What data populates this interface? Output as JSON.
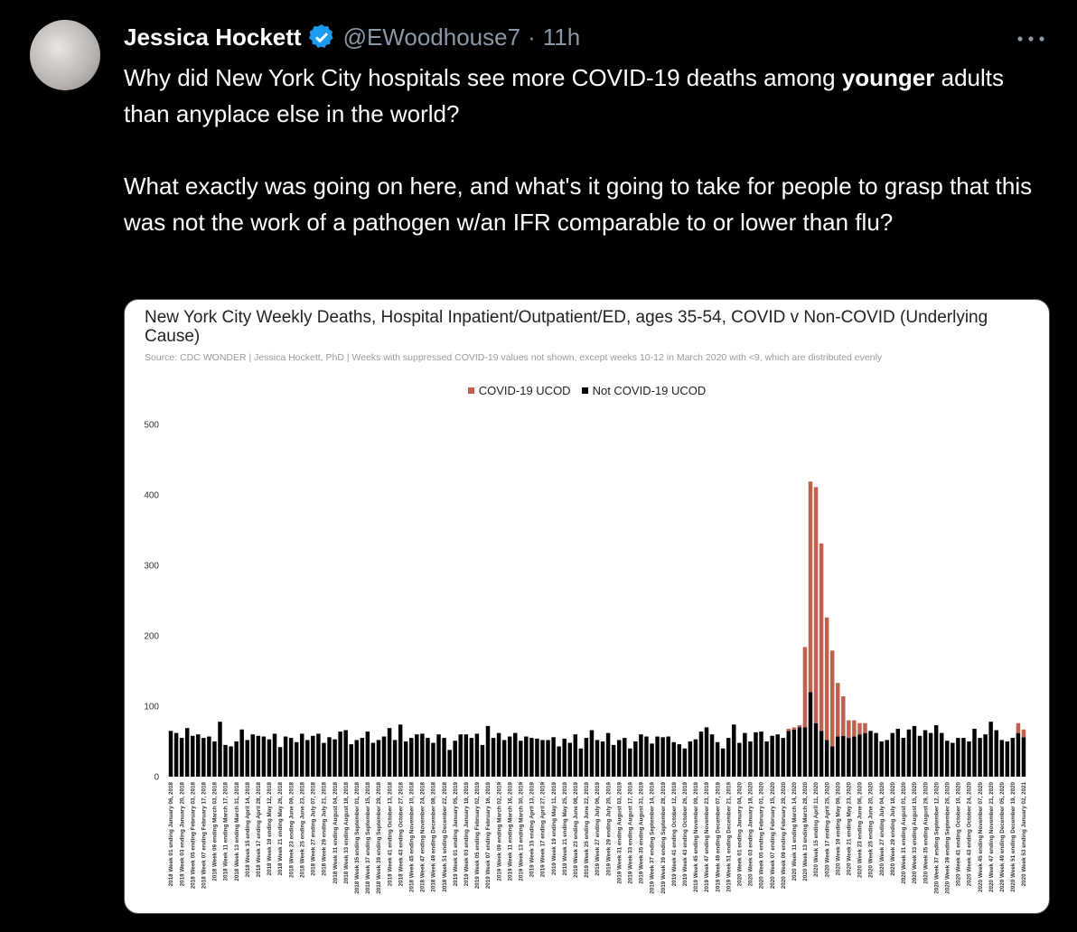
{
  "tweet": {
    "author": {
      "name": "Jessica Hockett",
      "handle": "@EWoodhouse7"
    },
    "separator": "·",
    "time": "11h",
    "paragraphs": [
      [
        {
          "text": "Why did New York City hospitals see more COVID-19 deaths among "
        },
        {
          "text": "younger",
          "bold": true
        },
        {
          "text": " adults than anyplace else in the world?"
        }
      ],
      [
        {
          "text": "What exactly was going on here, and what's it going to take for people to grasp that this was not the work of a pathogen w/an IFR comparable to or lower than flu?"
        }
      ]
    ]
  },
  "chart_data": {
    "type": "bar",
    "stacked": true,
    "title": "New York City Weekly Deaths, Hospital Inpatient/Outpatient/ED, ages 35-54, COVID v Non-COVID (Underlying Cause)",
    "subtitle": "Source: CDC WONDER | Jessica Hockett, PhD | Weeks with suppressed COVID-19 values not shown, except weeks 10-12 in March 2020 with <9, which are distributed evenly",
    "ylim": [
      0,
      500
    ],
    "yticks": [
      0,
      100,
      200,
      300,
      400,
      500
    ],
    "grid": false,
    "legend": "top",
    "categories": [
      "2018 Week 01 ending January 06, 2018",
      null,
      "2018 Week 03 ending January 20, 2018",
      null,
      "2018 Week 05 ending February 03, 2018",
      null,
      "2018 Week 07 ending February 17, 2018",
      null,
      "2018 Week 09 ending March 03, 2018",
      null,
      "2018 Week 11 ending March 17, 2018",
      null,
      "2018 Week 13 ending March 31, 2018",
      null,
      "2018 Week 15 ending April 14, 2018",
      null,
      "2018 Week 17 ending April 28, 2018",
      null,
      "2018 Week 19 ending May 12, 2018",
      null,
      "2018 Week 21 ending May 26, 2018",
      null,
      "2018 Week 23 ending June 09, 2018",
      null,
      "2018 Week 25 ending June 23, 2018",
      null,
      "2018 Week 27 ending July 07, 2018",
      null,
      "2018 Week 29 ending July 21, 2018",
      null,
      "2018 Week 31 ending August 04, 2018",
      null,
      "2018 Week 33 ending August 18, 2018",
      null,
      "2018 Week 35 ending September 01, 2018",
      null,
      "2018 Week 37 ending September 15, 2018",
      null,
      "2018 Week 39 ending September 29, 2018",
      null,
      "2018 Week 41 ending October 13, 2018",
      null,
      "2018 Week 43 ending October 27, 2018",
      null,
      "2018 Week 45 ending November 10, 2018",
      null,
      "2018 Week 47 ending November 24, 2018",
      null,
      "2018 Week 49 ending December 08, 2018",
      null,
      "2018 Week 51 ending December 22, 2018",
      null,
      "2019 Week 01 ending January 05, 2019",
      null,
      "2019 Week 03 ending January 19, 2019",
      null,
      "2019 Week 05 ending February 02, 2019",
      null,
      "2019 Week 07 ending February 16, 2019",
      null,
      "2019 Week 09 ending March 02, 2019",
      null,
      "2019 Week 11 ending March 16, 2019",
      null,
      "2019 Week 13 ending March 30, 2019",
      null,
      "2019 Week 15 ending April 13, 2019",
      null,
      "2019 Week 17 ending April 27, 2019",
      null,
      "2019 Week 19 ending May 11, 2019",
      null,
      "2019 Week 21 ending May 25, 2019",
      null,
      "2019 Week 23 ending June 08, 2019",
      null,
      "2019 Week 25 ending June 22, 2019",
      null,
      "2019 Week 27 ending July 06, 2019",
      null,
      "2019 Week 29 ending July 20, 2019",
      null,
      "2019 Week 31 ending August 03, 2019",
      null,
      "2019 Week 33 ending August 17, 2019",
      null,
      "2019 Week 35 ending August 31, 2019",
      null,
      "2019 Week 37 ending September 14, 2019",
      null,
      "2019 Week 39 ending September 28, 2019",
      null,
      "2019 Week 41 ending October 12, 2019",
      null,
      "2019 Week 43 ending October 26, 2019",
      null,
      "2019 Week 45 ending November 09, 2019",
      null,
      "2019 Week 47 ending November 23, 2019",
      null,
      "2019 Week 49 ending December 07, 2019",
      null,
      "2019 Week 51 ending December 21, 2019",
      null,
      "2020 Week 01 ending January 04, 2020",
      null,
      "2020 Week 03 ending January 18, 2020",
      null,
      "2020 Week 05 ending February 01, 2020",
      null,
      "2020 Week 07 ending February 15, 2020",
      null,
      "2020 Week 09 ending February 29, 2020",
      null,
      "2020 Week 11 ending March 14, 2020",
      null,
      "2020 Week 13 ending March 28, 2020",
      null,
      "2020 Week 15 ending April 11, 2020",
      null,
      "2020 Week 17 ending April 25, 2020",
      null,
      "2020 Week 19 ending May 09, 2020",
      null,
      "2020 Week 21 ending May 23, 2020",
      null,
      "2020 Week 23 ending June 06, 2020",
      null,
      "2020 Week 25 ending June 20, 2020",
      null,
      "2020 Week 27 ending July 04, 2020",
      null,
      "2020 Week 29 ending July 18, 2020",
      null,
      "2020 Week 31 ending August 01, 2020",
      null,
      "2020 Week 33 ending August 15, 2020",
      null,
      "2020 Week 35 ending August 29, 2020",
      null,
      "2020 Week 37 ending September 12, 2020",
      null,
      "2020 Week 39 ending September 26, 2020",
      null,
      "2020 Week 41 ending October 10, 2020",
      null,
      "2020 Week 43 ending October 24, 2020",
      null,
      "2020 Week 45 ending November 07, 2020",
      null,
      "2020 Week 47 ending November 21, 2020",
      null,
      "2020 Week 49 ending December 05, 2020",
      null,
      "2020 Week 51 ending December 19, 2020",
      null,
      "2020 Week 53 ending January 02, 2021"
    ],
    "series": [
      {
        "name": "COVID-19 UCOD",
        "color": "#c0614f",
        "values": [
          null,
          null,
          null,
          null,
          null,
          null,
          null,
          null,
          null,
          null,
          null,
          null,
          null,
          null,
          null,
          null,
          null,
          null,
          null,
          null,
          null,
          null,
          null,
          null,
          null,
          null,
          null,
          null,
          null,
          null,
          null,
          null,
          null,
          null,
          null,
          null,
          null,
          null,
          null,
          null,
          null,
          null,
          null,
          null,
          null,
          null,
          null,
          null,
          null,
          null,
          null,
          null,
          null,
          null,
          null,
          null,
          null,
          null,
          null,
          null,
          null,
          null,
          null,
          null,
          null,
          null,
          null,
          null,
          null,
          null,
          null,
          null,
          null,
          null,
          null,
          null,
          null,
          null,
          null,
          null,
          null,
          null,
          null,
          null,
          null,
          null,
          null,
          null,
          null,
          null,
          null,
          null,
          null,
          null,
          null,
          null,
          null,
          null,
          null,
          null,
          null,
          null,
          null,
          null,
          null,
          null,
          null,
          null,
          null,
          null,
          null,
          null,
          null,
          3,
          3,
          3,
          114,
          299,
          335,
          266,
          174,
          136,
          76,
          56,
          25,
          23,
          16,
          14,
          null,
          null,
          null,
          null,
          null,
          null,
          null,
          null,
          null,
          null,
          null,
          null,
          null,
          null,
          null,
          null,
          null,
          null,
          null,
          null,
          null,
          null,
          null,
          null,
          null,
          null,
          null,
          14,
          11
        ]
      },
      {
        "name": "Not COVID-19 UCOD",
        "color": "#000000",
        "values": [
          65,
          62,
          55,
          69,
          58,
          60,
          55,
          57,
          50,
          78,
          45,
          43,
          50,
          67,
          52,
          60,
          58,
          57,
          53,
          61,
          42,
          57,
          55,
          49,
          61,
          52,
          58,
          61,
          48,
          56,
          53,
          64,
          66,
          46,
          52,
          55,
          64,
          48,
          52,
          57,
          69,
          52,
          74,
          50,
          55,
          60,
          61,
          55,
          48,
          60,
          55,
          38,
          51,
          60,
          60,
          55,
          61,
          45,
          72,
          55,
          62,
          52,
          57,
          62,
          51,
          57,
          55,
          54,
          52,
          52,
          56,
          43,
          54,
          48,
          60,
          40,
          55,
          66,
          52,
          50,
          62,
          45,
          52,
          55,
          40,
          50,
          60,
          57,
          47,
          57,
          56,
          57,
          49,
          46,
          40,
          50,
          53,
          64,
          70,
          60,
          49,
          40,
          55,
          74,
          48,
          62,
          50,
          63,
          64,
          50,
          58,
          60,
          55,
          65,
          67,
          70,
          70,
          120,
          76,
          65,
          52,
          43,
          57,
          58,
          55,
          57,
          60,
          62,
          65,
          62,
          50,
          52,
          62,
          68,
          55,
          67,
          72,
          58,
          66,
          62,
          73,
          62,
          51,
          48,
          55,
          55,
          50,
          68,
          55,
          60,
          78,
          66,
          52,
          50,
          55,
          62,
          56
        ]
      }
    ]
  }
}
